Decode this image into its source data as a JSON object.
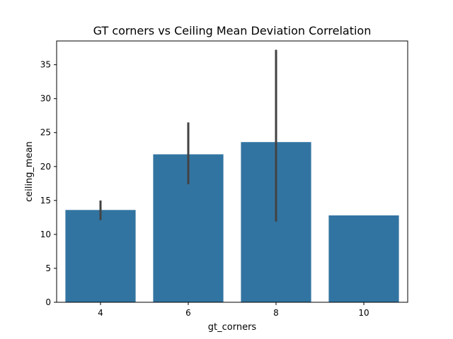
{
  "chart_data": {
    "type": "bar",
    "title": "GT corners vs Ceiling Mean Deviation Correlation",
    "xlabel": "gt_corners",
    "ylabel": "ceiling_mean",
    "categories": [
      "4",
      "6",
      "8",
      "10"
    ],
    "values": [
      13.6,
      21.8,
      23.6,
      12.8
    ],
    "error_bars": [
      {
        "low": 12.1,
        "high": 15.0
      },
      {
        "low": 17.4,
        "high": 26.5
      },
      {
        "low": 11.9,
        "high": 37.2
      },
      null
    ],
    "ylim": [
      0,
      38.5
    ],
    "yticks": [
      0,
      5,
      10,
      15,
      20,
      25,
      30,
      35
    ],
    "grid": false,
    "legend": "none",
    "colors": {
      "bar": "#3274a1",
      "error": "#424242",
      "axis": "#000000"
    }
  }
}
